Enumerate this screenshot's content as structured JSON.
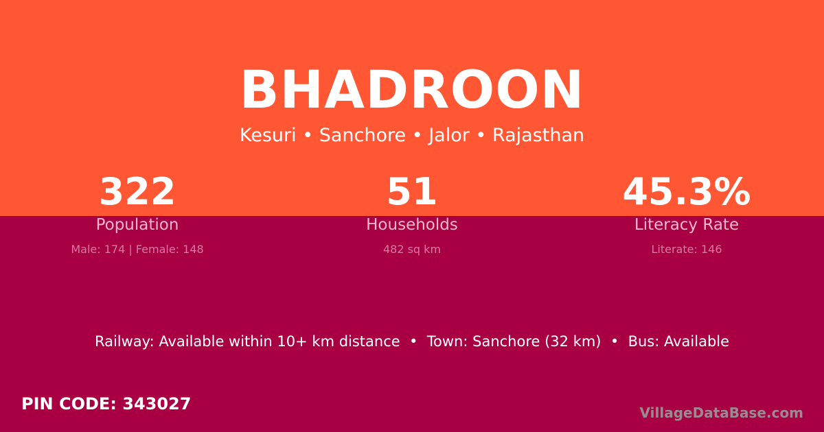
{
  "colors": {
    "header": "#ff5733",
    "body": "#a90044"
  },
  "village": "BHADROON",
  "location": "Kesuri • Sanchore • Jalor • Rajasthan",
  "stats": [
    {
      "value": "322",
      "label": "Population",
      "detail": "Male: 174 | Female: 148"
    },
    {
      "value": "51",
      "label": "Households",
      "detail": "482 sq km"
    },
    {
      "value": "45.3%",
      "label": "Literacy Rate",
      "detail": "Literate: 146"
    }
  ],
  "connectivity": "Railway: Available within 10+ km distance  •  Town: Sanchore (32 km)  •  Bus: Available",
  "pin_code": "PIN CODE: 343027",
  "brand": "VillageDataBase.com"
}
